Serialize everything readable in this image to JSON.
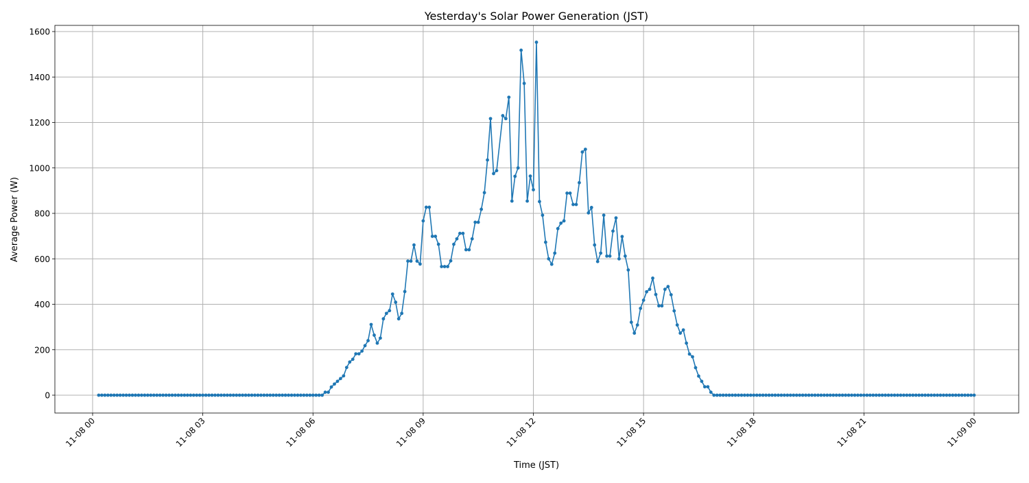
{
  "chart_data": {
    "type": "line",
    "title": "Yesterday's Solar Power Generation (JST)",
    "xlabel": "Time (JST)",
    "ylabel": "Average Power (W)",
    "ylim": [
      -78,
      1630
    ],
    "xlim": [
      "11-07 22:59",
      "11-09 01:11"
    ],
    "grid": true,
    "marker": "circle",
    "color": "#1f77b4",
    "x_ticks": [
      {
        "label": "11-08 00",
        "hour": 0
      },
      {
        "label": "11-08 03",
        "hour": 3
      },
      {
        "label": "11-08 06",
        "hour": 6
      },
      {
        "label": "11-08 09",
        "hour": 9
      },
      {
        "label": "11-08 12",
        "hour": 12
      },
      {
        "label": "11-08 15",
        "hour": 15
      },
      {
        "label": "11-08 18",
        "hour": 18
      },
      {
        "label": "11-08 21",
        "hour": 21
      },
      {
        "label": "11-09 00",
        "hour": 24
      }
    ],
    "y_ticks": [
      0,
      200,
      400,
      600,
      800,
      1000,
      1200,
      1400,
      1600
    ],
    "points": [
      [
        "11-08 00:10",
        0
      ],
      [
        "11-08 00:15",
        0
      ],
      [
        "11-08 00:20",
        0
      ],
      [
        "11-08 00:25",
        0
      ],
      [
        "11-08 00:30",
        0
      ],
      [
        "11-08 00:35",
        0
      ],
      [
        "11-08 00:40",
        0
      ],
      [
        "11-08 00:45",
        0
      ],
      [
        "11-08 00:50",
        0
      ],
      [
        "11-08 00:55",
        0
      ],
      [
        "11-08 01:00",
        0
      ],
      [
        "11-08 01:05",
        0
      ],
      [
        "11-08 01:10",
        0
      ],
      [
        "11-08 01:15",
        0
      ],
      [
        "11-08 01:20",
        0
      ],
      [
        "11-08 01:25",
        0
      ],
      [
        "11-08 01:30",
        0
      ],
      [
        "11-08 01:35",
        0
      ],
      [
        "11-08 01:40",
        0
      ],
      [
        "11-08 01:45",
        0
      ],
      [
        "11-08 01:50",
        0
      ],
      [
        "11-08 01:55",
        0
      ],
      [
        "11-08 02:00",
        0
      ],
      [
        "11-08 02:05",
        0
      ],
      [
        "11-08 02:10",
        0
      ],
      [
        "11-08 02:15",
        0
      ],
      [
        "11-08 02:20",
        0
      ],
      [
        "11-08 02:25",
        0
      ],
      [
        "11-08 02:30",
        0
      ],
      [
        "11-08 02:35",
        0
      ],
      [
        "11-08 02:40",
        0
      ],
      [
        "11-08 02:45",
        0
      ],
      [
        "11-08 02:50",
        0
      ],
      [
        "11-08 02:55",
        0
      ],
      [
        "11-08 03:00",
        0
      ],
      [
        "11-08 03:05",
        0
      ],
      [
        "11-08 03:10",
        0
      ],
      [
        "11-08 03:15",
        0
      ],
      [
        "11-08 03:20",
        0
      ],
      [
        "11-08 03:25",
        0
      ],
      [
        "11-08 03:30",
        0
      ],
      [
        "11-08 03:35",
        0
      ],
      [
        "11-08 03:40",
        0
      ],
      [
        "11-08 03:45",
        0
      ],
      [
        "11-08 03:50",
        0
      ],
      [
        "11-08 03:55",
        0
      ],
      [
        "11-08 04:00",
        0
      ],
      [
        "11-08 04:05",
        0
      ],
      [
        "11-08 04:10",
        0
      ],
      [
        "11-08 04:15",
        0
      ],
      [
        "11-08 04:20",
        0
      ],
      [
        "11-08 04:25",
        0
      ],
      [
        "11-08 04:30",
        0
      ],
      [
        "11-08 04:35",
        0
      ],
      [
        "11-08 04:40",
        0
      ],
      [
        "11-08 04:45",
        0
      ],
      [
        "11-08 04:50",
        0
      ],
      [
        "11-08 04:55",
        0
      ],
      [
        "11-08 05:00",
        0
      ],
      [
        "11-08 05:05",
        0
      ],
      [
        "11-08 05:10",
        0
      ],
      [
        "11-08 05:15",
        0
      ],
      [
        "11-08 05:20",
        0
      ],
      [
        "11-08 05:25",
        0
      ],
      [
        "11-08 05:30",
        0
      ],
      [
        "11-08 05:35",
        0
      ],
      [
        "11-08 05:40",
        0
      ],
      [
        "11-08 05:45",
        0
      ],
      [
        "11-08 05:50",
        0
      ],
      [
        "11-08 05:55",
        0
      ],
      [
        "11-08 06:00",
        0
      ],
      [
        "11-08 06:05",
        0
      ],
      [
        "11-08 06:10",
        0
      ],
      [
        "11-08 06:15",
        0
      ],
      [
        "11-08 06:20",
        13
      ],
      [
        "11-08 06:25",
        13
      ],
      [
        "11-08 06:30",
        36
      ],
      [
        "11-08 06:35",
        49
      ],
      [
        "11-08 06:40",
        61
      ],
      [
        "11-08 06:45",
        73
      ],
      [
        "11-08 06:50",
        85
      ],
      [
        "11-08 06:55",
        122
      ],
      [
        "11-08 07:00",
        146
      ],
      [
        "11-08 07:05",
        158
      ],
      [
        "11-08 07:10",
        182
      ],
      [
        "11-08 07:15",
        182
      ],
      [
        "11-08 07:20",
        194
      ],
      [
        "11-08 07:25",
        218
      ],
      [
        "11-08 07:30",
        240
      ],
      [
        "11-08 07:35",
        311
      ],
      [
        "11-08 07:40",
        264
      ],
      [
        "11-08 07:45",
        229
      ],
      [
        "11-08 07:50",
        251
      ],
      [
        "11-08 07:55",
        336
      ],
      [
        "11-08 08:00",
        360
      ],
      [
        "11-08 08:05",
        372
      ],
      [
        "11-08 08:10",
        445
      ],
      [
        "11-08 08:15",
        409
      ],
      [
        "11-08 08:20",
        336
      ],
      [
        "11-08 08:25",
        360
      ],
      [
        "11-08 08:30",
        456
      ],
      [
        "11-08 08:35",
        590
      ],
      [
        "11-08 08:40",
        590
      ],
      [
        "11-08 08:45",
        661
      ],
      [
        "11-08 08:50",
        590
      ],
      [
        "11-08 08:55",
        577
      ],
      [
        "11-08 09:00",
        767
      ],
      [
        "11-08 09:05",
        827
      ],
      [
        "11-08 09:10",
        827
      ],
      [
        "11-08 09:15",
        699
      ],
      [
        "11-08 09:20",
        699
      ],
      [
        "11-08 09:25",
        664
      ],
      [
        "11-08 09:30",
        566
      ],
      [
        "11-08 09:35",
        566
      ],
      [
        "11-08 09:40",
        566
      ],
      [
        "11-08 09:45",
        591
      ],
      [
        "11-08 09:50",
        664
      ],
      [
        "11-08 09:55",
        688
      ],
      [
        "11-08 10:00",
        712
      ],
      [
        "11-08 10:05",
        712
      ],
      [
        "11-08 10:10",
        640
      ],
      [
        "11-08 10:15",
        640
      ],
      [
        "11-08 10:20",
        688
      ],
      [
        "11-08 10:25",
        761
      ],
      [
        "11-08 10:30",
        761
      ],
      [
        "11-08 10:35",
        818
      ],
      [
        "11-08 10:40",
        891
      ],
      [
        "11-08 10:45",
        1035
      ],
      [
        "11-08 10:50",
        1217
      ],
      [
        "11-08 10:55",
        975
      ],
      [
        "11-08 11:00",
        988
      ],
      [
        "11-08 11:10",
        1230
      ],
      [
        "11-08 11:15",
        1217
      ],
      [
        "11-08 11:20",
        1311
      ],
      [
        "11-08 11:25",
        854
      ],
      [
        "11-08 11:30",
        963
      ],
      [
        "11-08 11:35",
        1000
      ],
      [
        "11-08 11:40",
        1518
      ],
      [
        "11-08 11:45",
        1372
      ],
      [
        "11-08 11:50",
        854
      ],
      [
        "11-08 11:55",
        964
      ],
      [
        "11-08 12:00",
        904
      ],
      [
        "11-08 12:05",
        1553
      ],
      [
        "11-08 12:10",
        852
      ],
      [
        "11-08 12:15",
        792
      ],
      [
        "11-08 12:20",
        673
      ],
      [
        "11-08 12:25",
        600
      ],
      [
        "11-08 12:30",
        576
      ],
      [
        "11-08 12:35",
        625
      ],
      [
        "11-08 12:40",
        733
      ],
      [
        "11-08 12:45",
        757
      ],
      [
        "11-08 12:50",
        767
      ],
      [
        "11-08 12:55",
        889
      ],
      [
        "11-08 13:00",
        889
      ],
      [
        "11-08 13:05",
        839
      ],
      [
        "11-08 13:10",
        839
      ],
      [
        "11-08 13:15",
        935
      ],
      [
        "11-08 13:20",
        1070
      ],
      [
        "11-08 13:25",
        1082
      ],
      [
        "11-08 13:30",
        802
      ],
      [
        "11-08 13:35",
        826
      ],
      [
        "11-08 13:40",
        661
      ],
      [
        "11-08 13:45",
        588
      ],
      [
        "11-08 13:50",
        625
      ],
      [
        "11-08 13:55",
        792
      ],
      [
        "11-08 14:00",
        612
      ],
      [
        "11-08 14:05",
        612
      ],
      [
        "11-08 14:10",
        722
      ],
      [
        "11-08 14:15",
        780
      ],
      [
        "11-08 14:20",
        600
      ],
      [
        "11-08 14:25",
        698
      ],
      [
        "11-08 14:30",
        612
      ],
      [
        "11-08 14:35",
        551
      ],
      [
        "11-08 14:40",
        321
      ],
      [
        "11-08 14:45",
        273
      ],
      [
        "11-08 14:50",
        309
      ],
      [
        "11-08 14:55",
        382
      ],
      [
        "11-08 15:00",
        418
      ],
      [
        "11-08 15:05",
        455
      ],
      [
        "11-08 15:10",
        466
      ],
      [
        "11-08 15:15",
        515
      ],
      [
        "11-08 15:20",
        443
      ],
      [
        "11-08 15:25",
        393
      ],
      [
        "11-08 15:30",
        393
      ],
      [
        "11-08 15:35",
        466
      ],
      [
        "11-08 15:40",
        478
      ],
      [
        "11-08 15:45",
        442
      ],
      [
        "11-08 15:50",
        371
      ],
      [
        "11-08 15:55",
        309
      ],
      [
        "11-08 16:00",
        273
      ],
      [
        "11-08 16:05",
        287
      ],
      [
        "11-08 16:10",
        229
      ],
      [
        "11-08 16:15",
        181
      ],
      [
        "11-08 16:20",
        169
      ],
      [
        "11-08 16:25",
        121
      ],
      [
        "11-08 16:30",
        84
      ],
      [
        "11-08 16:35",
        61
      ],
      [
        "11-08 16:40",
        37
      ],
      [
        "11-08 16:45",
        37
      ],
      [
        "11-08 16:50",
        13
      ],
      [
        "11-08 16:55",
        0
      ],
      [
        "11-08 17:00",
        0
      ],
      [
        "11-08 17:05",
        0
      ],
      [
        "11-08 17:10",
        0
      ],
      [
        "11-08 17:15",
        0
      ],
      [
        "11-08 17:20",
        0
      ],
      [
        "11-08 17:25",
        0
      ],
      [
        "11-08 17:30",
        0
      ],
      [
        "11-08 17:35",
        0
      ],
      [
        "11-08 17:40",
        0
      ],
      [
        "11-08 17:45",
        0
      ],
      [
        "11-08 17:50",
        0
      ],
      [
        "11-08 17:55",
        0
      ],
      [
        "11-08 18:00",
        0
      ],
      [
        "11-08 18:05",
        0
      ],
      [
        "11-08 18:10",
        0
      ],
      [
        "11-08 18:15",
        0
      ],
      [
        "11-08 18:20",
        0
      ],
      [
        "11-08 18:25",
        0
      ],
      [
        "11-08 18:30",
        0
      ],
      [
        "11-08 18:35",
        0
      ],
      [
        "11-08 18:40",
        0
      ],
      [
        "11-08 18:45",
        0
      ],
      [
        "11-08 18:50",
        0
      ],
      [
        "11-08 18:55",
        0
      ],
      [
        "11-08 19:00",
        0
      ],
      [
        "11-08 19:05",
        0
      ],
      [
        "11-08 19:10",
        0
      ],
      [
        "11-08 19:15",
        0
      ],
      [
        "11-08 19:20",
        0
      ],
      [
        "11-08 19:25",
        0
      ],
      [
        "11-08 19:30",
        0
      ],
      [
        "11-08 19:35",
        0
      ],
      [
        "11-08 19:40",
        0
      ],
      [
        "11-08 19:45",
        0
      ],
      [
        "11-08 19:50",
        0
      ],
      [
        "11-08 19:55",
        0
      ],
      [
        "11-08 20:00",
        0
      ],
      [
        "11-08 20:05",
        0
      ],
      [
        "11-08 20:10",
        0
      ],
      [
        "11-08 20:15",
        0
      ],
      [
        "11-08 20:20",
        0
      ],
      [
        "11-08 20:25",
        0
      ],
      [
        "11-08 20:30",
        0
      ],
      [
        "11-08 20:35",
        0
      ],
      [
        "11-08 20:40",
        0
      ],
      [
        "11-08 20:45",
        0
      ],
      [
        "11-08 20:50",
        0
      ],
      [
        "11-08 20:55",
        0
      ],
      [
        "11-08 21:00",
        0
      ],
      [
        "11-08 21:05",
        0
      ],
      [
        "11-08 21:10",
        0
      ],
      [
        "11-08 21:15",
        0
      ],
      [
        "11-08 21:20",
        0
      ],
      [
        "11-08 21:25",
        0
      ],
      [
        "11-08 21:30",
        0
      ],
      [
        "11-08 21:35",
        0
      ],
      [
        "11-08 21:40",
        0
      ],
      [
        "11-08 21:45",
        0
      ],
      [
        "11-08 21:50",
        0
      ],
      [
        "11-08 21:55",
        0
      ],
      [
        "11-08 22:00",
        0
      ],
      [
        "11-08 22:05",
        0
      ],
      [
        "11-08 22:10",
        0
      ],
      [
        "11-08 22:15",
        0
      ],
      [
        "11-08 22:20",
        0
      ],
      [
        "11-08 22:25",
        0
      ],
      [
        "11-08 22:30",
        0
      ],
      [
        "11-08 22:35",
        0
      ],
      [
        "11-08 22:40",
        0
      ],
      [
        "11-08 22:45",
        0
      ],
      [
        "11-08 22:50",
        0
      ],
      [
        "11-08 22:55",
        0
      ],
      [
        "11-08 23:00",
        0
      ],
      [
        "11-08 23:05",
        0
      ],
      [
        "11-08 23:10",
        0
      ],
      [
        "11-08 23:15",
        0
      ],
      [
        "11-08 23:20",
        0
      ],
      [
        "11-08 23:25",
        0
      ],
      [
        "11-08 23:30",
        0
      ],
      [
        "11-08 23:35",
        0
      ],
      [
        "11-08 23:40",
        0
      ],
      [
        "11-08 23:45",
        0
      ],
      [
        "11-08 23:50",
        0
      ],
      [
        "11-08 23:55",
        0
      ],
      [
        "11-09 00:00",
        0
      ]
    ]
  }
}
